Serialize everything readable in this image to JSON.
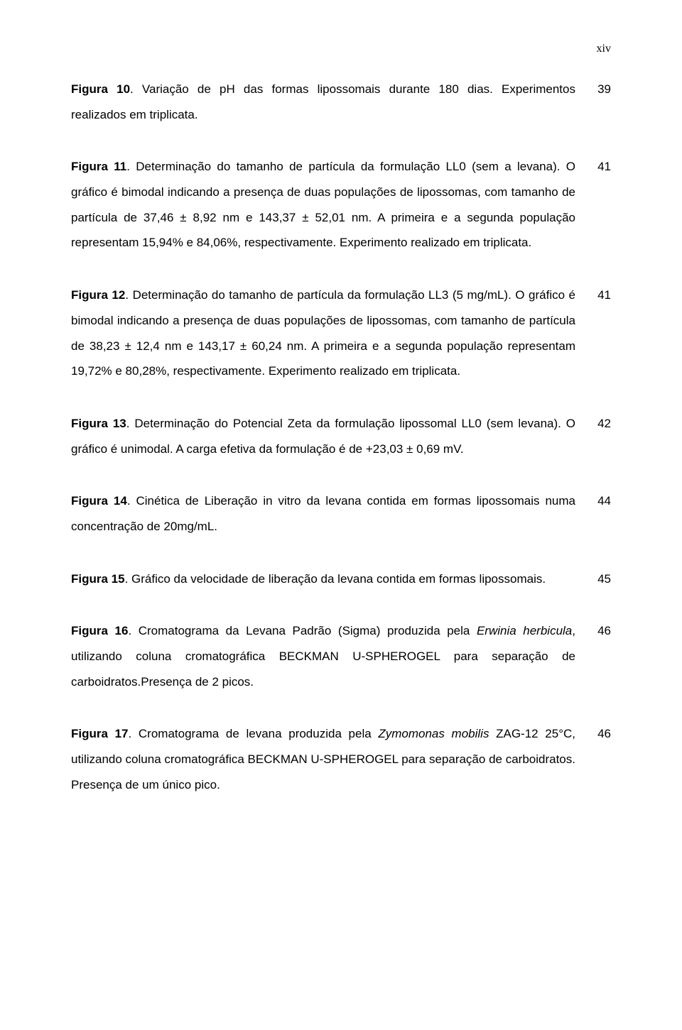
{
  "pageNumber": "xiv",
  "entries": [
    {
      "label": "Figura 10",
      "text": ". Variação de pH das formas lipossomais durante 180 dias. Experimentos realizados em triplicata.",
      "page": "39"
    },
    {
      "label": "Figura 11",
      "text": ". Determinação do tamanho de partícula da formulação LL0 (sem a levana). O gráfico é bimodal indicando a presença de duas populações de lipossomas, com tamanho de partícula de 37,46 ± 8,92 nm e 143,37 ± 52,01 nm. A primeira e a segunda população representam 15,94% e 84,06%, respectivamente. Experimento realizado em triplicata.",
      "page": "41"
    },
    {
      "label": "Figura 12",
      "text": ". Determinação do tamanho de partícula da formulação LL3 (5 mg/mL). O gráfico é bimodal indicando a presença de duas populações de lipossomas, com tamanho de partícula de 38,23 ± 12,4 nm  e 143,17 ± 60,24 nm. A primeira e a segunda população representam 19,72% e 80,28%, respectivamente. Experimento realizado em triplicata.",
      "page": "41"
    },
    {
      "label": "Figura 13",
      "text": ". Determinação do Potencial Zeta da formulação lipossomal LL0 (sem levana). O gráfico é unimodal. A carga efetiva da formulação é de +23,03 ± 0,69 mV.",
      "page": "42"
    },
    {
      "label": "Figura 14",
      "text": ". Cinética de Liberação in vitro da levana contida em formas lipossomais numa concentração de 20mg/mL.",
      "page": "44"
    },
    {
      "label": "Figura 15",
      "text": ". Gráfico da velocidade de liberação da levana contida em formas lipossomais.",
      "page": "45"
    },
    {
      "label": "Figura 16",
      "text_before_italic": ". Cromatograma da Levana Padrão (Sigma) produzida pela ",
      "italic_text": "Erwinia herbicula",
      "text_after_italic": ", utilizando coluna cromatográfica BECKMAN U-SPHEROGEL para separação de carboidratos.Presença de 2 picos.",
      "page": "46",
      "has_italic": true
    },
    {
      "label": "Figura 17",
      "text_before_italic": ". Cromatograma de levana produzida pela ",
      "italic_text": "Zymomonas mobilis",
      "text_after_italic": " ZAG-12 25°C, utilizando coluna cromatográfica BECKMAN U-SPHEROGEL para separação de carboidratos. Presença de um único pico.",
      "page": "46",
      "has_italic": true
    }
  ]
}
